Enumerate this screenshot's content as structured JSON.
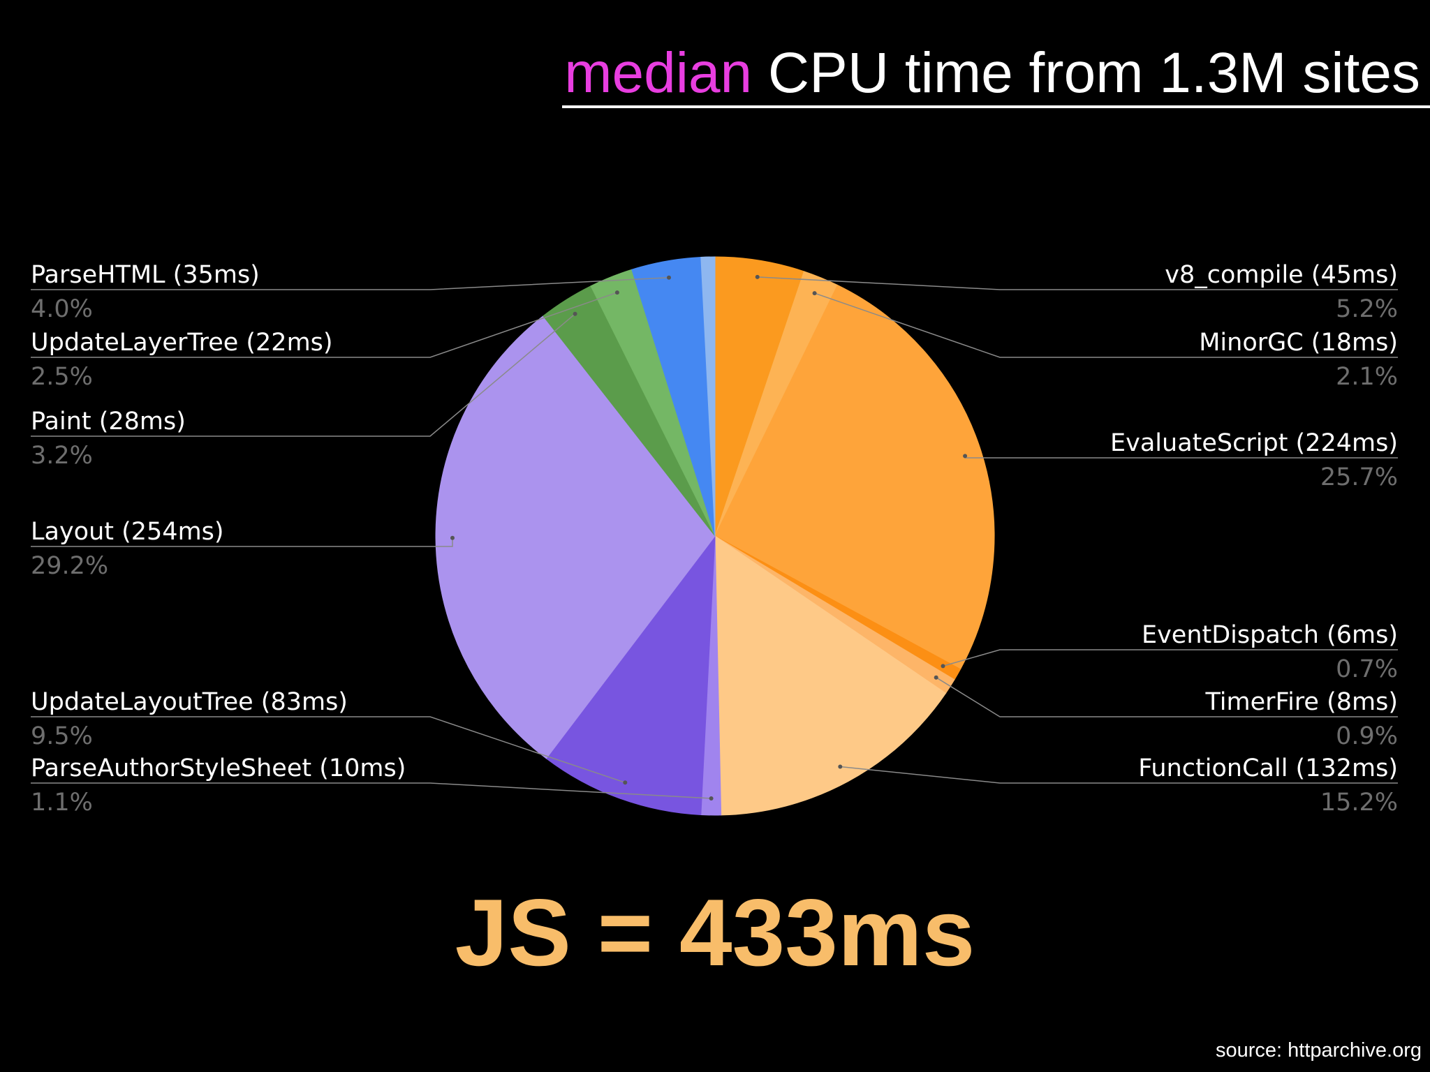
{
  "title": {
    "accent": "median",
    "rest": " CPU time from 1.3M sites"
  },
  "summary": "JS = 433ms",
  "source": "source: httparchive.org",
  "chart_data": {
    "type": "pie",
    "title": "median CPU time from 1.3M sites",
    "start_angle_deg": 0,
    "direction": "clockwise",
    "slices": [
      {
        "label": "v8_compile (45ms)",
        "pct": "5.2%",
        "value": 45,
        "color": "#fb9a1f",
        "side": "right"
      },
      {
        "label": "MinorGC (18ms)",
        "pct": "2.1%",
        "value": 18,
        "color": "#fdb354",
        "side": "right"
      },
      {
        "label": "EvaluateScript (224ms)",
        "pct": "25.7%",
        "value": 224,
        "color": "#fea43a",
        "side": "right"
      },
      {
        "label": "EventDispatch (6ms)",
        "pct": "0.7%",
        "value": 6,
        "color": "#fc8f14",
        "side": "right"
      },
      {
        "label": "TimerFire (8ms)",
        "pct": "0.9%",
        "value": 8,
        "color": "#fdb568",
        "side": "right"
      },
      {
        "label": "FunctionCall (132ms)",
        "pct": "15.2%",
        "value": 132,
        "color": "#fec987",
        "side": "right"
      },
      {
        "label": "ParseAuthorStyleSheet (10ms)",
        "pct": "1.1%",
        "value": 10,
        "color": "#a084ee",
        "side": "left"
      },
      {
        "label": "UpdateLayoutTree (83ms)",
        "pct": "9.5%",
        "value": 83,
        "color": "#7855e0",
        "side": "left"
      },
      {
        "label": "Layout (254ms)",
        "pct": "29.2%",
        "value": 254,
        "color": "#ab93ee",
        "side": "left"
      },
      {
        "label": "Paint (28ms)",
        "pct": "3.2%",
        "value": 28,
        "color": "#5b9c4b",
        "side": "left"
      },
      {
        "label": "UpdateLayerTree (22ms)",
        "pct": "2.5%",
        "value": 22,
        "color": "#74b765",
        "side": "left"
      },
      {
        "label": "ParseHTML (35ms)",
        "pct": "4.0%",
        "value": 35,
        "color": "#4588f2",
        "side": "left"
      },
      {
        "label": "",
        "pct": "",
        "value": 7,
        "color": "#8eb7f0",
        "side": "none"
      }
    ]
  }
}
